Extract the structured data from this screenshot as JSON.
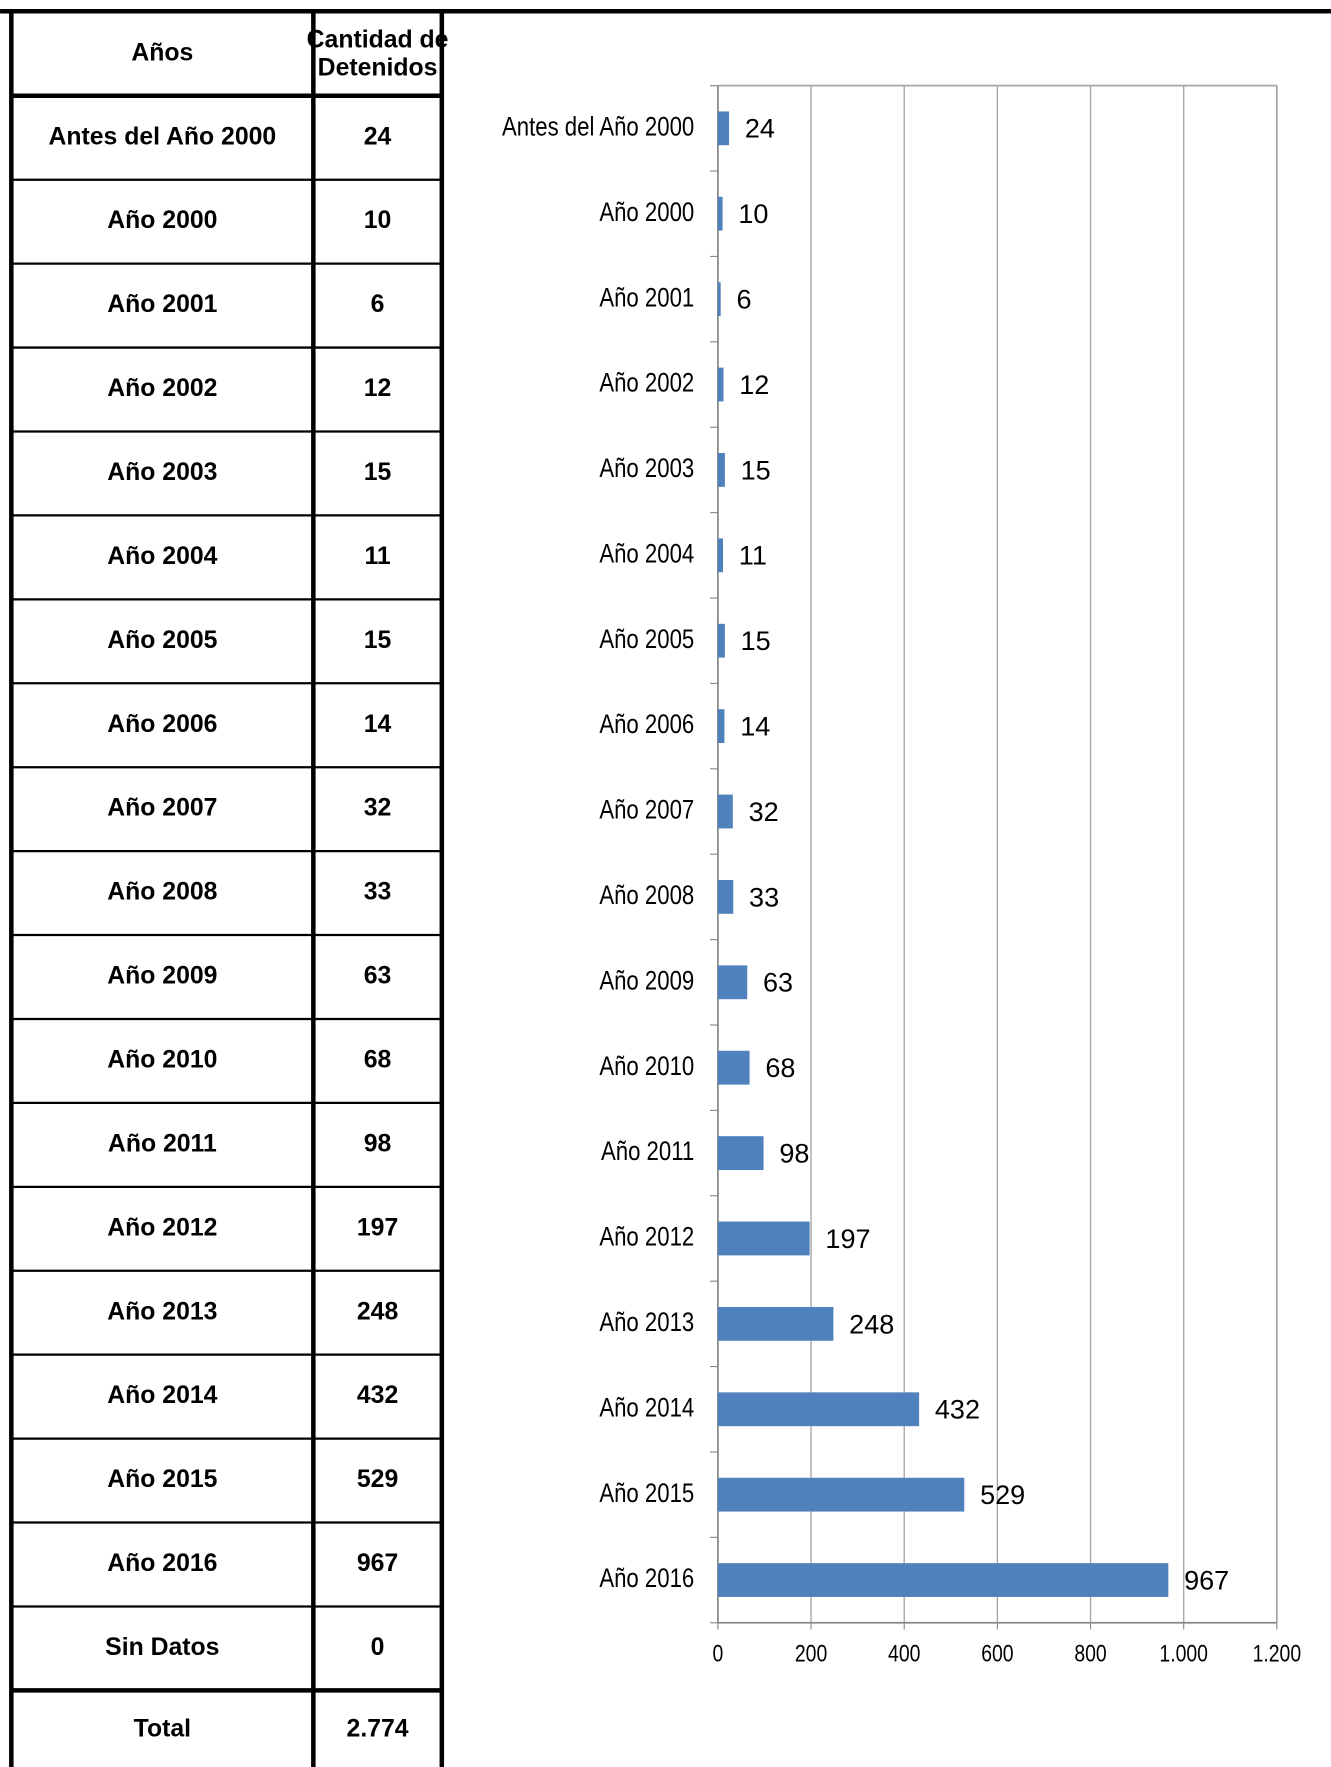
{
  "table": {
    "header": [
      "Años",
      "Cantidad de Detenidos"
    ],
    "rows": [
      [
        "Antes del Año 2000",
        24
      ],
      [
        "Año 2000",
        10
      ],
      [
        "Año 2001",
        6
      ],
      [
        "Año 2002",
        12
      ],
      [
        "Año 2003",
        15
      ],
      [
        "Año 2004",
        11
      ],
      [
        "Año 2005",
        15
      ],
      [
        "Año 2006",
        14
      ],
      [
        "Año 2007",
        32
      ],
      [
        "Año 2008",
        33
      ],
      [
        "Año 2009",
        63
      ],
      [
        "Año 2010",
        68
      ],
      [
        "Año 2011",
        98
      ],
      [
        "Año 2012",
        197
      ],
      [
        "Año 2013",
        248
      ],
      [
        "Año 2014",
        432
      ],
      [
        "Año 2015",
        529
      ],
      [
        "Año 2016",
        967
      ],
      [
        "Sin Datos",
        0
      ]
    ],
    "total": [
      "Total",
      "2.774"
    ]
  },
  "chart_data": {
    "type": "hbar",
    "color": "#4f81bd",
    "categories": [
      "Antes del Año 2000",
      "Año 2000",
      "Año 2001",
      "Año 2002",
      "Año 2003",
      "Año 2004",
      "Año 2005",
      "Año 2006",
      "Año 2007",
      "Año 2008",
      "Año 2009",
      "Año 2010",
      "Año 2011",
      "Año 2012",
      "Año 2013",
      "Año 2014",
      "Año 2015",
      "Año 2016"
    ],
    "values": [
      24,
      10,
      6,
      12,
      15,
      11,
      15,
      14,
      32,
      33,
      63,
      68,
      98,
      197,
      248,
      432,
      529,
      967
    ],
    "xlim": [
      0,
      1200
    ],
    "xticks": [
      0,
      200,
      400,
      600,
      800,
      {
        "value": 1000,
        "label": "1.000"
      },
      {
        "value": 1200,
        "label": "1.200"
      }
    ],
    "grid": true
  }
}
